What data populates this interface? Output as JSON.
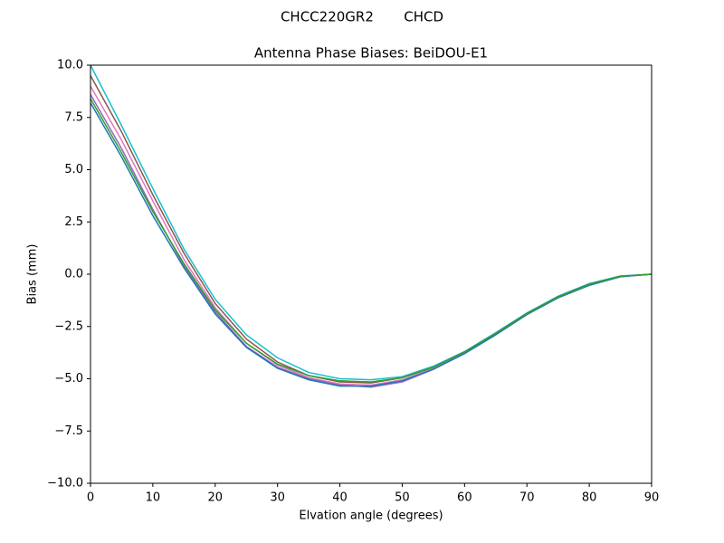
{
  "chart_data": {
    "type": "line",
    "suptitle": "CHCC220GR2       CHCD",
    "title": "Antenna Phase Biases: BeiDOU-E1",
    "x_label": "Elvation angle (degrees)",
    "y_label": "Bias (mm)",
    "x": [
      0,
      5,
      10,
      15,
      20,
      25,
      30,
      35,
      40,
      45,
      50,
      55,
      60,
      65,
      70,
      75,
      80,
      85,
      90
    ],
    "series": [
      {
        "color": "#17becf",
        "values": [
          10.0,
          7.1,
          4.1,
          1.2,
          -1.2,
          -2.9,
          -4.0,
          -4.7,
          -5.0,
          -5.05,
          -4.9,
          -4.4,
          -3.7,
          -2.8,
          -1.85,
          -1.05,
          -0.45,
          -0.08,
          0.0
        ]
      },
      {
        "color": "#8c564b",
        "values": [
          9.5,
          6.8,
          3.8,
          1.0,
          -1.4,
          -3.1,
          -4.2,
          -4.85,
          -5.15,
          -5.2,
          -4.95,
          -4.45,
          -3.72,
          -2.83,
          -1.88,
          -1.08,
          -0.48,
          -0.1,
          0.0
        ]
      },
      {
        "color": "#e377c2",
        "values": [
          9.0,
          6.4,
          3.5,
          0.7,
          -1.6,
          -3.3,
          -4.35,
          -4.95,
          -5.25,
          -5.3,
          -5.05,
          -4.5,
          -3.75,
          -2.86,
          -1.9,
          -1.1,
          -0.5,
          -0.1,
          0.0
        ]
      },
      {
        "color": "#9467bd",
        "values": [
          8.6,
          6.0,
          3.1,
          0.4,
          -1.8,
          -3.45,
          -4.45,
          -5.0,
          -5.3,
          -5.4,
          -5.15,
          -4.55,
          -3.78,
          -2.88,
          -1.92,
          -1.12,
          -0.52,
          -0.12,
          0.0
        ]
      },
      {
        "color": "#1f77b4",
        "values": [
          8.2,
          5.6,
          2.8,
          0.3,
          -1.9,
          -3.5,
          -4.5,
          -5.05,
          -5.35,
          -5.35,
          -5.1,
          -4.55,
          -3.8,
          -2.9,
          -1.93,
          -1.13,
          -0.53,
          -0.12,
          0.0
        ]
      },
      {
        "color": "#2ca02c",
        "values": [
          8.4,
          5.8,
          3.0,
          0.5,
          -1.7,
          -3.3,
          -4.3,
          -4.85,
          -5.1,
          -5.15,
          -4.95,
          -4.45,
          -3.72,
          -2.84,
          -1.89,
          -1.09,
          -0.49,
          -0.1,
          0.0
        ]
      }
    ],
    "xlim": [
      0,
      90
    ],
    "ylim": [
      -10,
      10
    ],
    "xticks": [
      0,
      10,
      20,
      30,
      40,
      50,
      60,
      70,
      80,
      90
    ],
    "yticks": [
      {
        "value": -10,
        "label": "−10.0"
      },
      {
        "value": -7.5,
        "label": "−7.5"
      },
      {
        "value": -5,
        "label": "−5.0"
      },
      {
        "value": -2.5,
        "label": "−2.5"
      },
      {
        "value": 0,
        "label": "0.0"
      },
      2.5,
      {
        "value": 5,
        "label": "5.0"
      },
      7.5,
      {
        "value": 10,
        "label": "10.0"
      }
    ],
    "grid": false
  }
}
